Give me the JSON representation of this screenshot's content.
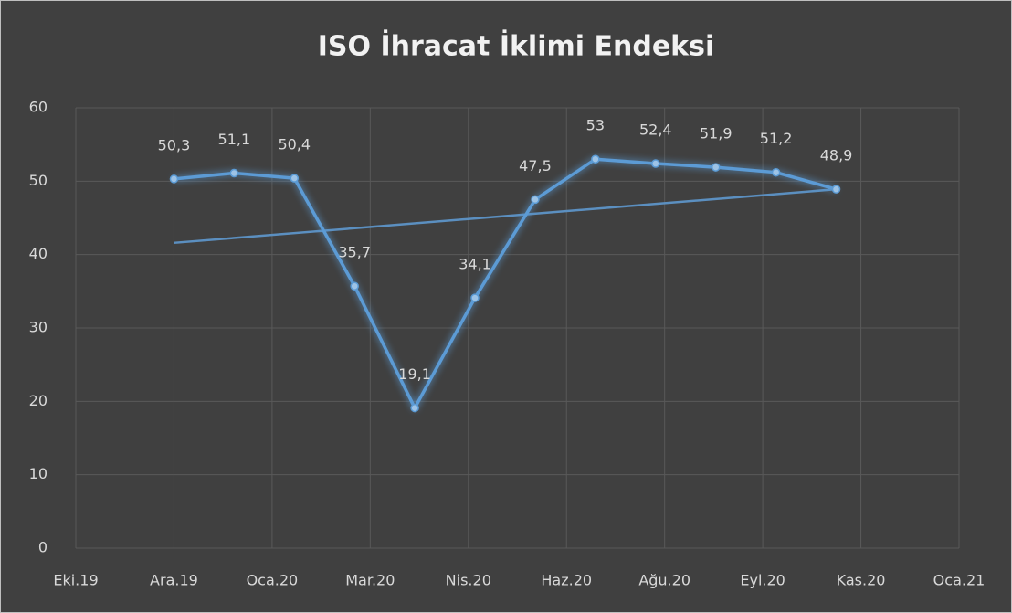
{
  "chart_data": {
    "type": "line",
    "title": "ISO İhracat İklimi Endeksi",
    "x": [
      0,
      1,
      2,
      3,
      4,
      5,
      6,
      7,
      8,
      9,
      10,
      11
    ],
    "series": [
      {
        "color": "#5b9bd5",
        "values": [
          50.3,
          51.1,
          50.4,
          35.7,
          19.1,
          34.1,
          47.5,
          53,
          52.4,
          51.9,
          51.2,
          48.9
        ],
        "value_labels": [
          "50,3",
          "51,1",
          "50,4",
          "35,7",
          "19,1",
          "34,1",
          "47,5",
          "53",
          "52,4",
          "51,9",
          "51,2",
          "48,9"
        ]
      }
    ],
    "trendline": {
      "color": "#5b8fc0",
      "x": [
        0,
        11
      ],
      "values": [
        41.6,
        48.9
      ]
    },
    "xlim": [
      -1.63,
      13.04
    ],
    "xticks": [
      {
        "value": -1.63,
        "label": "Eki.19"
      },
      {
        "value": 0,
        "label": "Ara.19"
      },
      {
        "value": 1.63,
        "label": "Oca.20"
      },
      {
        "value": 3.26,
        "label": "Mar.20"
      },
      {
        "value": 4.89,
        "label": "Nis.20"
      },
      {
        "value": 6.52,
        "label": "Haz.20"
      },
      {
        "value": 8.15,
        "label": "Ağu.20"
      },
      {
        "value": 9.78,
        "label": "Eyl.20"
      },
      {
        "value": 11.41,
        "label": "Kas.20"
      },
      {
        "value": 13.04,
        "label": "Oca.21"
      }
    ],
    "ylim": [
      0,
      60
    ],
    "yticks": [
      0,
      10,
      20,
      30,
      40,
      50,
      60
    ],
    "grid": true
  }
}
